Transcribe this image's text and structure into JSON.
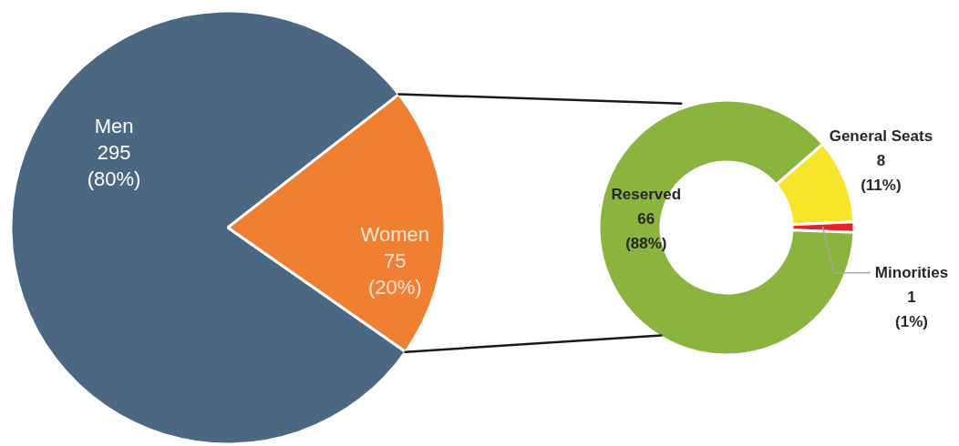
{
  "chart_data": [
    {
      "type": "pie",
      "categories": [
        "Men",
        "Women"
      ],
      "values": [
        295,
        75
      ],
      "colors": [
        "#4b6782",
        "#ef7f31"
      ],
      "value_labels": [
        "295 (80%)",
        "75 (20%)"
      ]
    },
    {
      "type": "donut",
      "categories": [
        "General Seats",
        "Minorities",
        "Reserved"
      ],
      "values": [
        8,
        1,
        66
      ],
      "colors": [
        "#f6e52a",
        "#e3232c",
        "#8bb43f"
      ],
      "value_labels": [
        "8 (11%)",
        "1 (1%)",
        "66 (88%)"
      ]
    }
  ]
}
